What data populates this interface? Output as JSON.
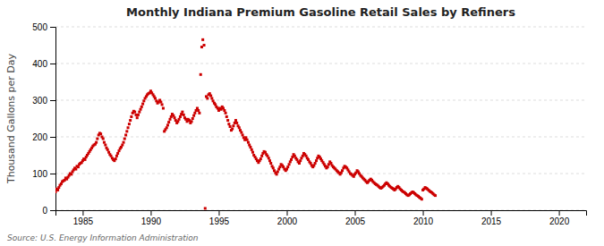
{
  "chart_data": {
    "type": "scatter",
    "title": "Monthly Indiana Premium Gasoline Retail Sales by Refiners",
    "ylabel": "Thousand Gallons per Day",
    "annotations": [
      "Source: U.S. Energy Information Administration"
    ],
    "color": "#cc0000",
    "marker": "square",
    "grid": "y",
    "xlim": [
      1983.0,
      2022.0
    ],
    "ylim": [
      0,
      500
    ],
    "xticks": [
      1985,
      1990,
      1995,
      2000,
      2005,
      2010,
      2015,
      2020
    ],
    "yticks": [
      0,
      100,
      200,
      300,
      400,
      500
    ],
    "x": [
      1983.0,
      1983.08,
      1983.17,
      1983.25,
      1983.33,
      1983.42,
      1983.5,
      1983.58,
      1983.67,
      1983.75,
      1983.83,
      1983.92,
      1984.0,
      1984.08,
      1984.17,
      1984.25,
      1984.33,
      1984.42,
      1984.5,
      1984.58,
      1984.67,
      1984.75,
      1984.83,
      1984.92,
      1985.0,
      1985.08,
      1985.17,
      1985.25,
      1985.33,
      1985.42,
      1985.5,
      1985.58,
      1985.67,
      1985.75,
      1985.83,
      1985.92,
      1986.0,
      1986.08,
      1986.17,
      1986.25,
      1986.33,
      1986.42,
      1986.5,
      1986.58,
      1986.67,
      1986.75,
      1986.83,
      1986.92,
      1987.0,
      1987.08,
      1987.17,
      1987.25,
      1987.33,
      1987.42,
      1987.5,
      1987.58,
      1987.67,
      1987.75,
      1987.83,
      1987.92,
      1988.0,
      1988.08,
      1988.17,
      1988.25,
      1988.33,
      1988.42,
      1988.5,
      1988.58,
      1988.67,
      1988.75,
      1988.83,
      1988.92,
      1989.0,
      1989.08,
      1989.17,
      1989.25,
      1989.33,
      1989.42,
      1989.5,
      1989.58,
      1989.67,
      1989.75,
      1989.83,
      1989.92,
      1990.0,
      1990.08,
      1990.17,
      1990.25,
      1990.33,
      1990.42,
      1990.5,
      1990.58,
      1990.67,
      1990.75,
      1990.83,
      1990.92,
      1991.0,
      1991.08,
      1991.17,
      1991.25,
      1991.33,
      1991.42,
      1991.5,
      1991.58,
      1991.67,
      1991.75,
      1991.83,
      1991.92,
      1992.0,
      1992.08,
      1992.17,
      1992.25,
      1992.33,
      1992.42,
      1992.5,
      1992.58,
      1992.67,
      1992.75,
      1992.83,
      1992.92,
      1993.0,
      1993.08,
      1993.17,
      1993.25,
      1993.33,
      1993.42,
      1993.5,
      1993.58,
      1993.67,
      1993.75,
      1993.83,
      1993.92,
      1994.0,
      1994.08,
      1994.17,
      1994.25,
      1994.33,
      1994.42,
      1994.5,
      1994.58,
      1994.67,
      1994.75,
      1994.83,
      1994.92,
      1995.0,
      1995.08,
      1995.17,
      1995.25,
      1995.33,
      1995.42,
      1995.5,
      1995.58,
      1995.67,
      1995.75,
      1995.83,
      1995.92,
      1996.0,
      1996.08,
      1996.17,
      1996.25,
      1996.33,
      1996.42,
      1996.5,
      1996.58,
      1996.67,
      1996.75,
      1996.83,
      1996.92,
      1997.0,
      1997.08,
      1997.17,
      1997.25,
      1997.33,
      1997.42,
      1997.5,
      1997.58,
      1997.67,
      1997.75,
      1997.83,
      1997.92,
      1998.0,
      1998.08,
      1998.17,
      1998.25,
      1998.33,
      1998.42,
      1998.5,
      1998.58,
      1998.67,
      1998.75,
      1998.83,
      1998.92,
      1999.0,
      1999.08,
      1999.17,
      1999.25,
      1999.33,
      1999.42,
      1999.5,
      1999.58,
      1999.67,
      1999.75,
      1999.83,
      1999.92,
      2000.0,
      2000.08,
      2000.17,
      2000.25,
      2000.33,
      2000.42,
      2000.5,
      2000.58,
      2000.67,
      2000.75,
      2000.83,
      2000.92,
      2001.0,
      2001.08,
      2001.17,
      2001.25,
      2001.33,
      2001.42,
      2001.5,
      2001.58,
      2001.67,
      2001.75,
      2001.83,
      2001.92,
      2002.0,
      2002.08,
      2002.17,
      2002.25,
      2002.33,
      2002.42,
      2002.5,
      2002.58,
      2002.67,
      2002.75,
      2002.83,
      2002.92,
      2003.0,
      2003.08,
      2003.17,
      2003.25,
      2003.33,
      2003.42,
      2003.5,
      2003.58,
      2003.67,
      2003.75,
      2003.83,
      2003.92,
      2004.0,
      2004.08,
      2004.17,
      2004.25,
      2004.33,
      2004.42,
      2004.5,
      2004.58,
      2004.67,
      2004.75,
      2004.83,
      2004.92,
      2005.0,
      2005.08,
      2005.17,
      2005.25,
      2005.33,
      2005.42,
      2005.5,
      2005.58,
      2005.67,
      2005.75,
      2005.83,
      2005.92,
      2006.0,
      2006.08,
      2006.17,
      2006.25,
      2006.33,
      2006.42,
      2006.5,
      2006.58,
      2006.67,
      2006.75,
      2006.83,
      2006.92,
      2007.0,
      2007.08,
      2007.17,
      2007.25,
      2007.33,
      2007.42,
      2007.5,
      2007.58,
      2007.67,
      2007.75,
      2007.83,
      2007.92,
      2008.0,
      2008.08,
      2008.17,
      2008.25,
      2008.33,
      2008.42,
      2008.5,
      2008.58,
      2008.67,
      2008.75,
      2008.83,
      2008.92,
      2009.0,
      2009.08,
      2009.17,
      2009.25,
      2009.33,
      2009.42,
      2009.5,
      2009.58,
      2009.67,
      2009.75,
      2009.83,
      2009.92,
      2010.0,
      2010.08,
      2010.17,
      2010.25,
      2010.33,
      2010.42,
      2010.5,
      2010.58,
      2010.67,
      2010.75,
      2010.83,
      2010.92
    ],
    "values": [
      50,
      58,
      55,
      62,
      68,
      72,
      78,
      80,
      82,
      88,
      85,
      90,
      95,
      100,
      98,
      105,
      110,
      115,
      112,
      120,
      118,
      125,
      128,
      130,
      135,
      140,
      138,
      145,
      150,
      155,
      160,
      165,
      170,
      175,
      178,
      180,
      185,
      195,
      205,
      210,
      208,
      200,
      195,
      185,
      178,
      170,
      165,
      158,
      152,
      148,
      142,
      138,
      135,
      140,
      148,
      155,
      162,
      168,
      172,
      178,
      185,
      195,
      205,
      215,
      225,
      235,
      245,
      255,
      265,
      270,
      268,
      260,
      252,
      260,
      268,
      275,
      282,
      290,
      298,
      305,
      310,
      315,
      318,
      320,
      325,
      320,
      315,
      310,
      305,
      298,
      292,
      295,
      300,
      295,
      288,
      278,
      215,
      220,
      225,
      232,
      240,
      248,
      255,
      262,
      258,
      252,
      245,
      238,
      242,
      248,
      255,
      262,
      268,
      260,
      252,
      248,
      242,
      248,
      245,
      238,
      242,
      250,
      258,
      265,
      272,
      278,
      272,
      265,
      370,
      445,
      465,
      450,
      5,
      310,
      305,
      315,
      318,
      312,
      305,
      298,
      292,
      288,
      282,
      278,
      272,
      278,
      275,
      282,
      278,
      272,
      265,
      255,
      245,
      235,
      228,
      218,
      222,
      230,
      238,
      245,
      238,
      230,
      225,
      218,
      212,
      205,
      198,
      192,
      198,
      192,
      185,
      178,
      172,
      165,
      158,
      150,
      145,
      140,
      135,
      130,
      135,
      140,
      148,
      155,
      160,
      158,
      152,
      148,
      142,
      135,
      128,
      120,
      115,
      108,
      102,
      98,
      105,
      112,
      118,
      125,
      122,
      118,
      112,
      108,
      112,
      118,
      125,
      132,
      138,
      145,
      152,
      148,
      142,
      138,
      132,
      128,
      135,
      142,
      148,
      155,
      152,
      148,
      142,
      138,
      132,
      128,
      122,
      118,
      122,
      128,
      135,
      142,
      148,
      145,
      140,
      135,
      130,
      125,
      120,
      115,
      118,
      125,
      132,
      128,
      122,
      118,
      115,
      112,
      108,
      105,
      102,
      98,
      102,
      108,
      115,
      120,
      118,
      115,
      110,
      105,
      100,
      98,
      95,
      92,
      98,
      102,
      108,
      105,
      100,
      95,
      92,
      88,
      85,
      82,
      78,
      75,
      78,
      82,
      85,
      82,
      78,
      75,
      72,
      70,
      68,
      65,
      62,
      60,
      62,
      65,
      68,
      72,
      75,
      72,
      68,
      65,
      62,
      60,
      58,
      55,
      58,
      62,
      65,
      62,
      58,
      55,
      52,
      50,
      48,
      45,
      42,
      40,
      42,
      45,
      48,
      50,
      48,
      45,
      42,
      40,
      38,
      35,
      33,
      30,
      55,
      58,
      62,
      60,
      58,
      55,
      52,
      50,
      48,
      45,
      42,
      40
    ]
  }
}
